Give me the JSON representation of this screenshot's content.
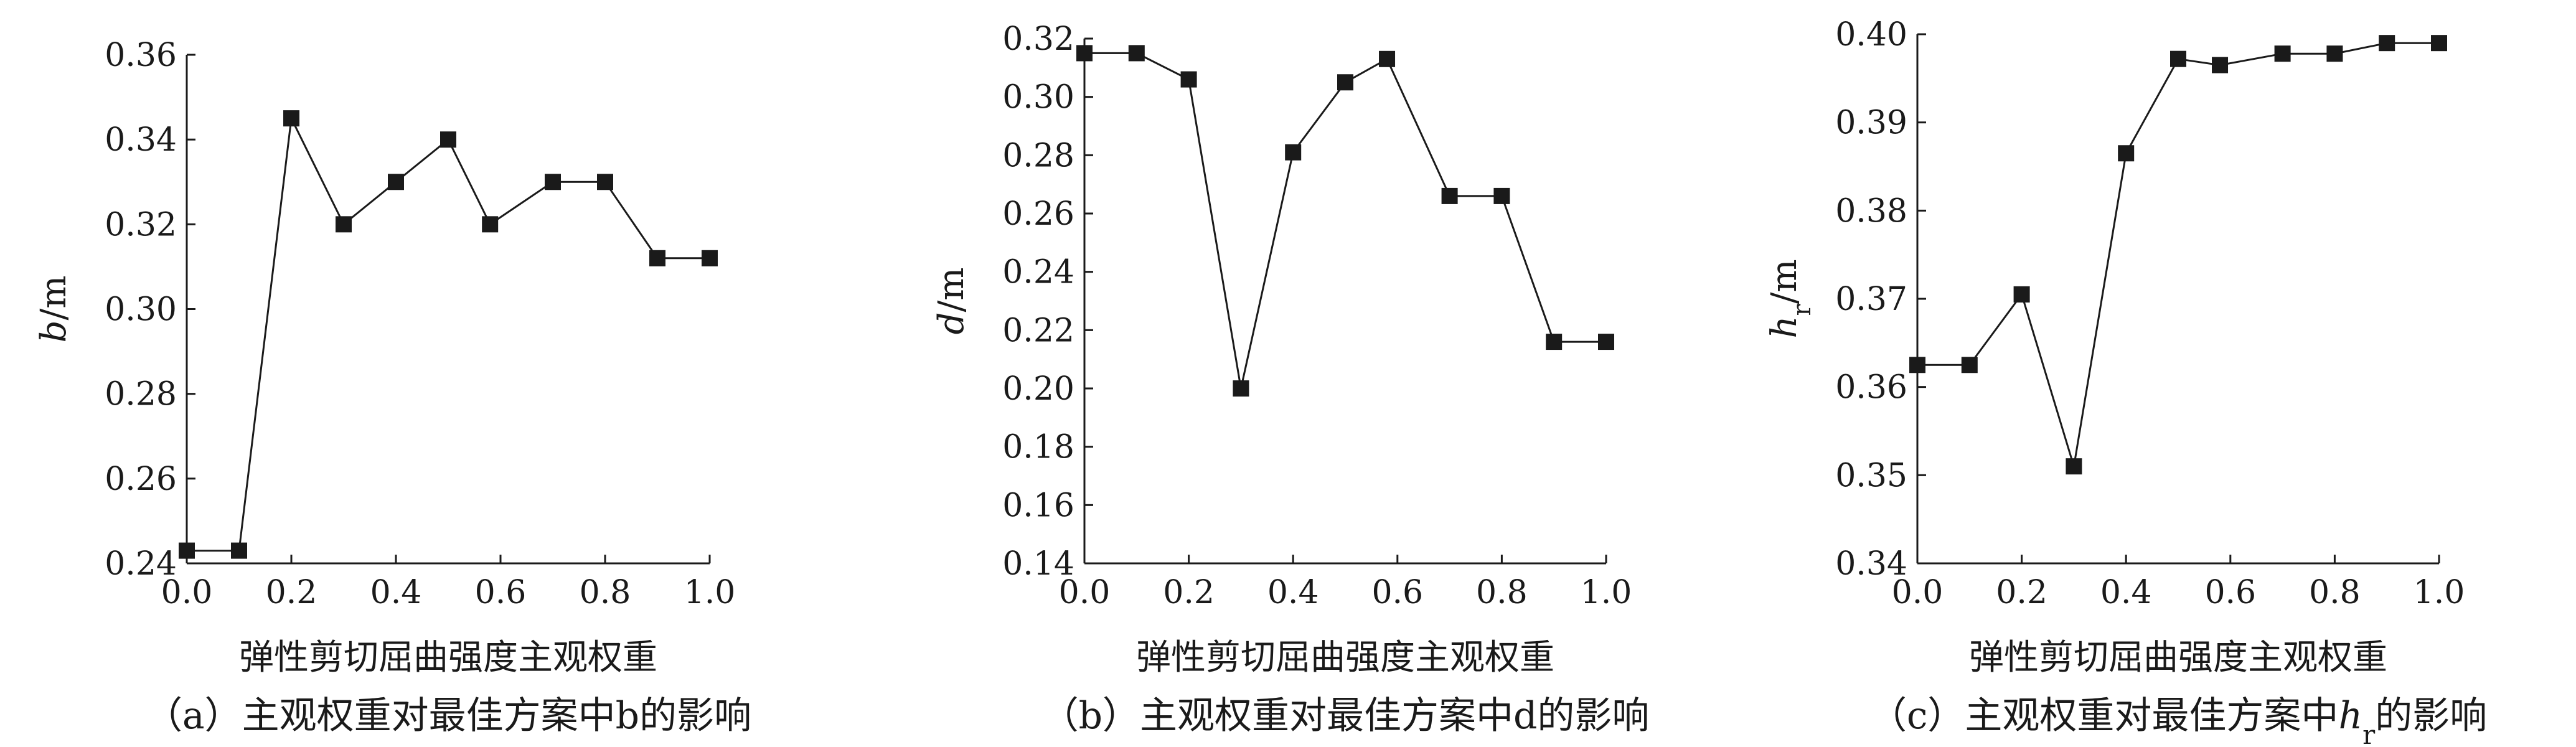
{
  "chart_data": [
    {
      "type": "line",
      "caption": "（a）主观权重对最佳方案中b的影响",
      "xlabel": "弹性剪切屈曲强度主观权重",
      "ylabel": "b/m",
      "xlim": [
        0,
        1.0
      ],
      "ylim": [
        0.24,
        0.36
      ],
      "xticks": [
        "0.0",
        "0.2",
        "0.4",
        "0.6",
        "0.8",
        "1.0"
      ],
      "yticks": [
        "0.24",
        "0.26",
        "0.28",
        "0.30",
        "0.32",
        "0.34",
        "0.36"
      ],
      "marker": "square",
      "color": "#1a1a1a",
      "x": [
        0.0,
        0.1,
        0.2,
        0.3,
        0.4,
        0.5,
        0.58,
        0.7,
        0.8,
        0.9,
        1.0
      ],
      "y": [
        0.243,
        0.243,
        0.345,
        0.32,
        0.33,
        0.34,
        0.32,
        0.33,
        0.33,
        0.312,
        0.312
      ]
    },
    {
      "type": "line",
      "caption": "（b）主观权重对最佳方案中d的影响",
      "xlabel": "弹性剪切屈曲强度主观权重",
      "ylabel": "d/m",
      "xlim": [
        0,
        1.0
      ],
      "ylim": [
        0.14,
        0.32
      ],
      "xticks": [
        "0.0",
        "0.2",
        "0.4",
        "0.6",
        "0.8",
        "1.0"
      ],
      "yticks": [
        "0.14",
        "0.16",
        "0.18",
        "0.20",
        "0.22",
        "0.24",
        "0.26",
        "0.28",
        "0.30",
        "0.32"
      ],
      "marker": "square",
      "color": "#1a1a1a",
      "x": [
        0.0,
        0.1,
        0.2,
        0.3,
        0.4,
        0.5,
        0.58,
        0.7,
        0.8,
        0.9,
        1.0
      ],
      "y": [
        0.315,
        0.315,
        0.306,
        0.2,
        0.281,
        0.305,
        0.313,
        0.266,
        0.266,
        0.216,
        0.216
      ]
    },
    {
      "type": "line",
      "caption": "（c）主观权重对最佳方案中h_r的影响",
      "xlabel": "弹性剪切屈曲强度主观权重",
      "ylabel": "h_r/m",
      "xlim": [
        0,
        1.0
      ],
      "ylim": [
        0.34,
        0.4
      ],
      "xticks": [
        "0.0",
        "0.2",
        "0.4",
        "0.6",
        "0.8",
        "1.0"
      ],
      "yticks": [
        "0.34",
        "0.35",
        "0.36",
        "0.37",
        "0.38",
        "0.39",
        "0.40"
      ],
      "marker": "square",
      "color": "#1a1a1a",
      "x": [
        0.0,
        0.1,
        0.2,
        0.3,
        0.4,
        0.5,
        0.58,
        0.7,
        0.8,
        0.9,
        1.0
      ],
      "y": [
        0.3625,
        0.3625,
        0.3705,
        0.351,
        0.3865,
        0.3972,
        0.3965,
        0.3978,
        0.3978,
        0.399,
        0.399
      ]
    }
  ]
}
